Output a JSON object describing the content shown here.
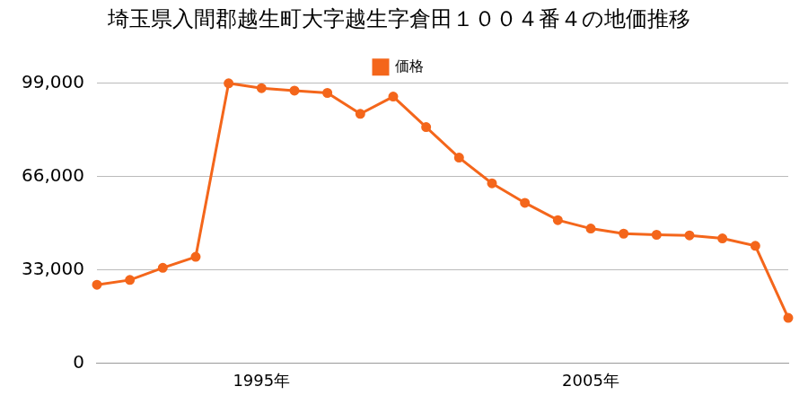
{
  "chart_data": {
    "type": "line",
    "title": "埼玉県入間郡越生町大字越生字倉田１００４番４の地価推移",
    "categories": [
      null,
      null,
      null,
      null,
      null,
      "1995年",
      null,
      null,
      null,
      null,
      null,
      null,
      null,
      null,
      null,
      "2005年",
      null,
      null,
      null,
      null,
      null,
      null
    ],
    "series": [
      {
        "name": "価格",
        "color": "#f4661b",
        "marker": "circle",
        "values": [
          27700,
          29400,
          33700,
          37600,
          99000,
          97300,
          96400,
          95600,
          88200,
          94300,
          83500,
          72700,
          63600,
          56700,
          50600,
          47600,
          45800,
          45400,
          45200,
          44100,
          41500,
          16000
        ]
      }
    ],
    "ylim": [
      0,
      99000
    ],
    "yticks": [
      0,
      {
        "value": 33000,
        "label": "33,000"
      },
      {
        "value": 66000,
        "label": "66,000"
      },
      {
        "value": 99000,
        "label": "99,000"
      }
    ],
    "grid": true,
    "legend": "top"
  }
}
